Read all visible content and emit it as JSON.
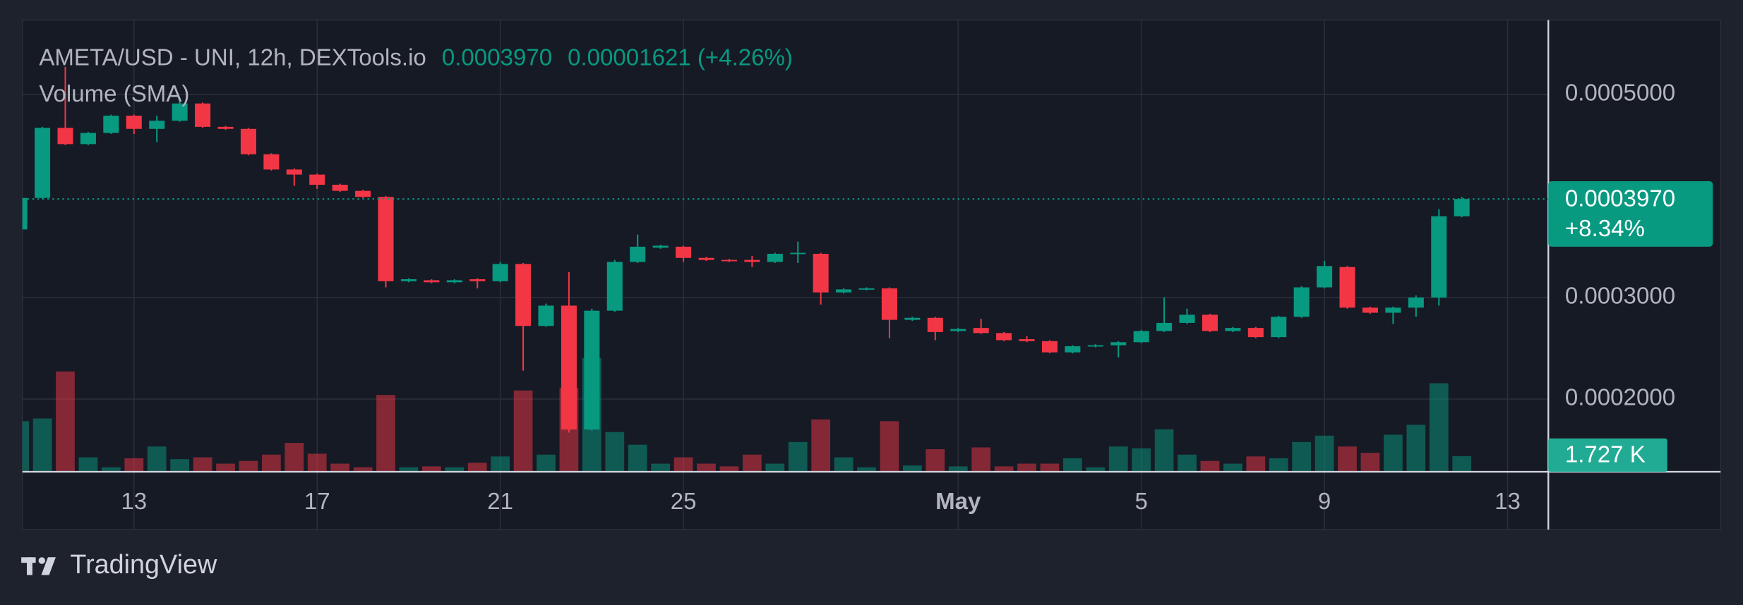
{
  "chart_data": {
    "type": "candlestick",
    "title": "AMETA/USD - UNI, 12h, DEXTools.io",
    "header_price": "0.0003970",
    "header_change": "0.00001621 (+4.26%)",
    "volume_title": "Volume (SMA)",
    "brand": "TradingView",
    "up_color": "#089981",
    "down_color": "#f23645",
    "open": [
      0.000367,
      0.000398,
      0.000467,
      0.000451,
      0.000462,
      0.000479,
      0.000466,
      0.000474,
      0.000491,
      0.000468,
      0.000466,
      0.000441,
      0.000426,
      0.000421,
      0.000411,
      0.000405,
      0.000399,
      0.000316,
      0.000317,
      0.000315,
      0.000318,
      0.000316,
      0.000333,
      0.000272,
      0.000292,
      0.00017,
      0.000287,
      0.000335,
      0.000349,
      0.00035,
      0.000339,
      0.000337,
      0.000337,
      0.000335,
      0.000343,
      0.000343,
      0.000305,
      0.000308,
      0.000309,
      0.000278,
      0.00028,
      0.000267,
      0.00027,
      0.000265,
      0.000259,
      0.000257,
      0.000246,
      0.000252,
      0.000253,
      0.000256,
      0.000267,
      0.000275,
      0.000283,
      0.000267,
      0.00027,
      0.000261,
      0.000281,
      0.00031,
      0.00033,
      0.00029,
      0.000285,
      0.00029,
      0.0003,
      0.00038
    ],
    "high": [
      0.000398,
      0.000468,
      0.000527,
      0.000463,
      0.00048,
      0.00048,
      0.000479,
      0.000493,
      0.000492,
      0.000469,
      0.000467,
      0.000442,
      0.000427,
      0.000422,
      0.000412,
      0.000406,
      0.0004,
      0.000319,
      0.000318,
      0.000318,
      0.000319,
      0.000335,
      0.000334,
      0.000294,
      0.000325,
      0.000289,
      0.000337,
      0.000362,
      0.000352,
      0.000351,
      0.00034,
      0.000338,
      0.000341,
      0.000344,
      0.000355,
      0.000344,
      0.000309,
      0.00031,
      0.00031,
      0.000281,
      0.000281,
      0.00027,
      0.000279,
      0.000266,
      0.000262,
      0.000258,
      0.000253,
      0.000254,
      0.000257,
      0.000268,
      0.0003,
      0.000289,
      0.000284,
      0.000271,
      0.000271,
      0.000282,
      0.000311,
      0.000336,
      0.000331,
      0.000291,
      0.000291,
      0.000302,
      0.000387,
      0.000399
    ],
    "low": [
      0.000367,
      0.000397,
      0.00045,
      0.00045,
      0.000461,
      0.000461,
      0.000453,
      0.000473,
      0.000467,
      0.000465,
      0.00044,
      0.000425,
      0.00041,
      0.000407,
      0.000404,
      0.000398,
      0.00031,
      0.000315,
      0.000314,
      0.000314,
      0.000309,
      0.000315,
      0.000228,
      0.000271,
      0.000167,
      0.000169,
      0.000286,
      0.000334,
      0.000348,
      0.000335,
      0.000336,
      0.000335,
      0.00033,
      0.000334,
      0.000334,
      0.000293,
      0.000304,
      0.000307,
      0.00026,
      0.000277,
      0.000258,
      0.000266,
      0.000264,
      0.000257,
      0.000256,
      0.000245,
      0.000245,
      0.000251,
      0.000241,
      0.000255,
      0.000266,
      0.000274,
      0.000266,
      0.000266,
      0.00026,
      0.00026,
      0.00028,
      0.000309,
      0.000289,
      0.000284,
      0.000274,
      0.000281,
      0.000292,
      0.000379
    ],
    "close": [
      0.000398,
      0.000467,
      0.000451,
      0.000462,
      0.000479,
      0.000466,
      0.000474,
      0.000491,
      0.000468,
      0.000466,
      0.000441,
      0.000426,
      0.000421,
      0.000411,
      0.000405,
      0.000399,
      0.000316,
      0.000318,
      0.000315,
      0.000317,
      0.000316,
      0.000333,
      0.000272,
      0.000292,
      0.00017,
      0.000287,
      0.000335,
      0.00035,
      0.000351,
      0.000339,
      0.000337,
      0.000336,
      0.000335,
      0.000343,
      0.000344,
      0.000305,
      0.000308,
      0.000309,
      0.000278,
      0.00028,
      0.000266,
      0.000269,
      0.000265,
      0.000258,
      0.000257,
      0.000246,
      0.000252,
      0.000253,
      0.000256,
      0.000267,
      0.000275,
      0.000283,
      0.000267,
      0.00027,
      0.000261,
      0.000281,
      0.00031,
      0.000331,
      0.00029,
      0.000285,
      0.00029,
      0.0003,
      0.00038,
      0.000397
    ],
    "volume": [
      5.6,
      5.9,
      11.1,
      1.6,
      0.5,
      1.5,
      2.8,
      1.4,
      1.6,
      0.9,
      1.2,
      1.9,
      3.2,
      2.0,
      0.9,
      0.5,
      8.5,
      0.5,
      0.6,
      0.5,
      1.0,
      1.7,
      9.0,
      1.9,
      9.3,
      12.6,
      4.4,
      3.0,
      0.9,
      1.6,
      0.9,
      0.6,
      1.9,
      0.9,
      3.3,
      5.8,
      1.6,
      0.5,
      5.6,
      0.7,
      2.5,
      0.6,
      2.7,
      0.6,
      0.9,
      0.9,
      1.5,
      0.5,
      2.8,
      2.6,
      4.7,
      1.9,
      1.2,
      0.9,
      1.7,
      1.5,
      3.3,
      4.0,
      2.8,
      2.1,
      4.1,
      5.2,
      9.8,
      1.727
    ],
    "volume_label": "1.727 K",
    "last_price_label": "0.0003970",
    "change_label": "+8.34%",
    "xlim": [
      0.126,
      66.78
    ],
    "xticks": [
      {
        "value": 5,
        "label": "13"
      },
      {
        "value": 13,
        "label": "17"
      },
      {
        "value": 21,
        "label": "21"
      },
      {
        "value": 29,
        "label": "25"
      },
      {
        "value": 41,
        "label": "May"
      },
      {
        "value": 49,
        "label": "5"
      },
      {
        "value": 57,
        "label": "9"
      },
      {
        "value": 65,
        "label": "13"
      }
    ],
    "ylim": [
      7.16e-05,
      0.0005732
    ],
    "yticks": [
      {
        "value": 0.0002,
        "label": "0.0002000"
      },
      {
        "value": 0.0003,
        "label": "0.0003000"
      },
      {
        "value": 0.0005,
        "label": "0.0005000"
      }
    ],
    "volume_ylim": [
      0,
      50
    ],
    "grid": true
  }
}
